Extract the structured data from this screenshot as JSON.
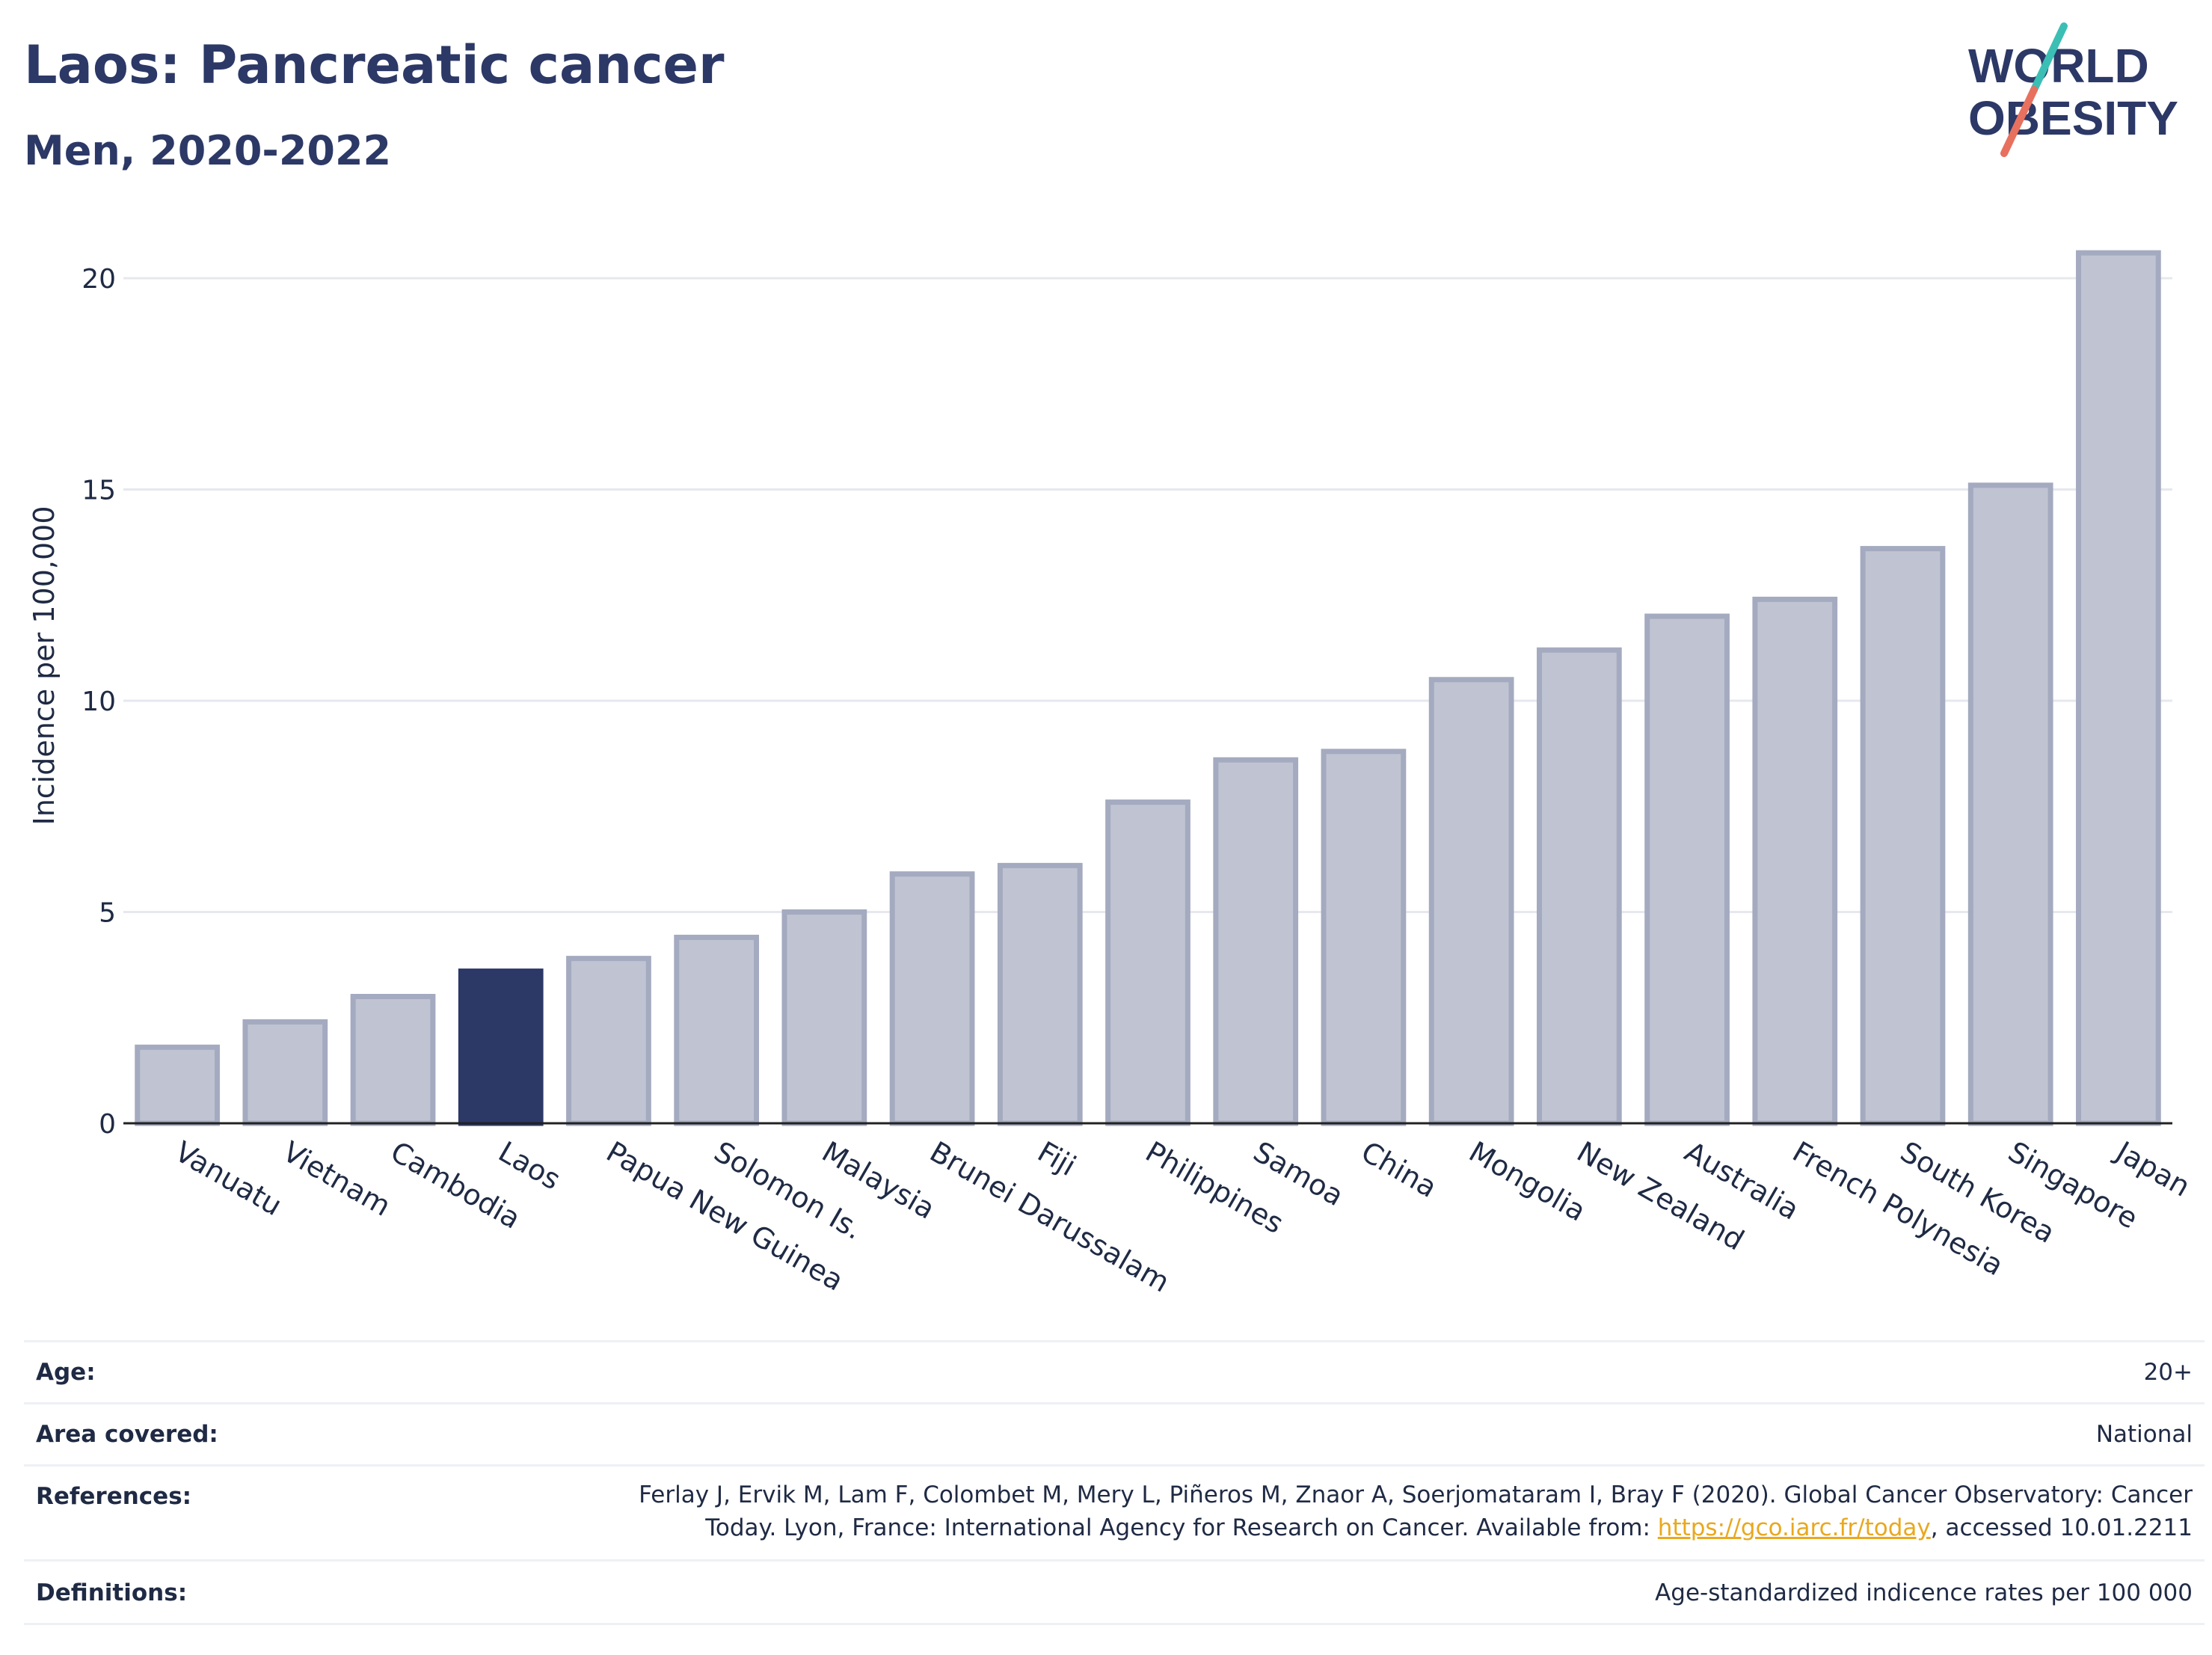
{
  "header": {
    "title": "Laos: Pancreatic cancer",
    "subtitle": "Men, 2020-2022"
  },
  "logo": {
    "line1": "WORLD",
    "line2": "OBESITY",
    "colors": {
      "text": "#2c3866",
      "slash_teal": "#3bbfb5",
      "slash_coral": "#e8705f"
    }
  },
  "chart_data": {
    "type": "bar",
    "title": "Laos: Pancreatic cancer",
    "subtitle": "Men, 2020-2022",
    "xlabel": "",
    "ylabel": "Incidence per 100,000",
    "ylim": [
      0,
      21.5
    ],
    "yticks": [
      0,
      5,
      10,
      15,
      20
    ],
    "grid": true,
    "highlight": "Laos",
    "colors": {
      "bar": "#c0c4d2",
      "bar_border": "#a4aabf",
      "highlight": "#2c3866"
    },
    "categories": [
      "Vanuatu",
      "Vietnam",
      "Cambodia",
      "Laos",
      "Papua New Guinea",
      "Solomon Is.",
      "Malaysia",
      "Brunei Darussalam",
      "Fiji",
      "Philippines",
      "Samoa",
      "China",
      "Mongolia",
      "New Zealand",
      "Australia",
      "French Polynesia",
      "South Korea",
      "Singapore",
      "Japan"
    ],
    "values": [
      1.8,
      2.4,
      3.0,
      3.6,
      3.9,
      4.4,
      5.0,
      5.9,
      6.1,
      7.6,
      8.6,
      8.8,
      10.5,
      11.2,
      12.0,
      12.4,
      13.6,
      15.1,
      20.6
    ]
  },
  "info": {
    "age": {
      "label": "Age:",
      "value": "20+"
    },
    "area": {
      "label": "Area covered:",
      "value": "National"
    },
    "references": {
      "label": "References:",
      "line1": "Ferlay J, Ervik M, Lam F, Colombet M, Mery L, Piñeros M, Znaor A, Soerjomataram I, Bray F (2020). Global Cancer Observatory: Cancer",
      "line2_pre": "Today. Lyon, France: International Agency for Research on Cancer. Available from: ",
      "link": "https://gco.iarc.fr/today",
      "line2_post": ", accessed 10.01.2211"
    },
    "definitions": {
      "label": "Definitions:",
      "value": "Age-standardized indicence rates per 100 000"
    }
  }
}
